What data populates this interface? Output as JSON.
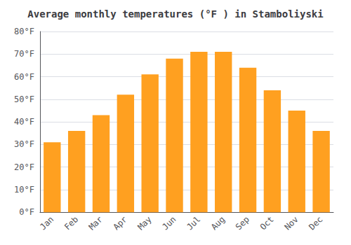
{
  "chart_data": {
    "type": "bar",
    "title": "Average monthly temperatures (°F ) in Stamboliyski",
    "categories": [
      "Jan",
      "Feb",
      "Mar",
      "Apr",
      "May",
      "Jun",
      "Jul",
      "Aug",
      "Sep",
      "Oct",
      "Nov",
      "Dec"
    ],
    "values": [
      31,
      36,
      43,
      52,
      61,
      68,
      71,
      71,
      64,
      54,
      45,
      36
    ],
    "color": "#FFA020",
    "ylim": [
      0,
      80
    ],
    "yticks": [
      {
        "value": 0,
        "label": "0°F"
      },
      {
        "value": 10,
        "label": "10°F"
      },
      {
        "value": 20,
        "label": "20°F"
      },
      {
        "value": 30,
        "label": "30°F"
      },
      {
        "value": 40,
        "label": "40°F"
      },
      {
        "value": 50,
        "label": "50°F"
      },
      {
        "value": 60,
        "label": "60°F"
      },
      {
        "value": 70,
        "label": "70°F"
      },
      {
        "value": 80,
        "label": "80°F"
      }
    ],
    "grid": true
  }
}
